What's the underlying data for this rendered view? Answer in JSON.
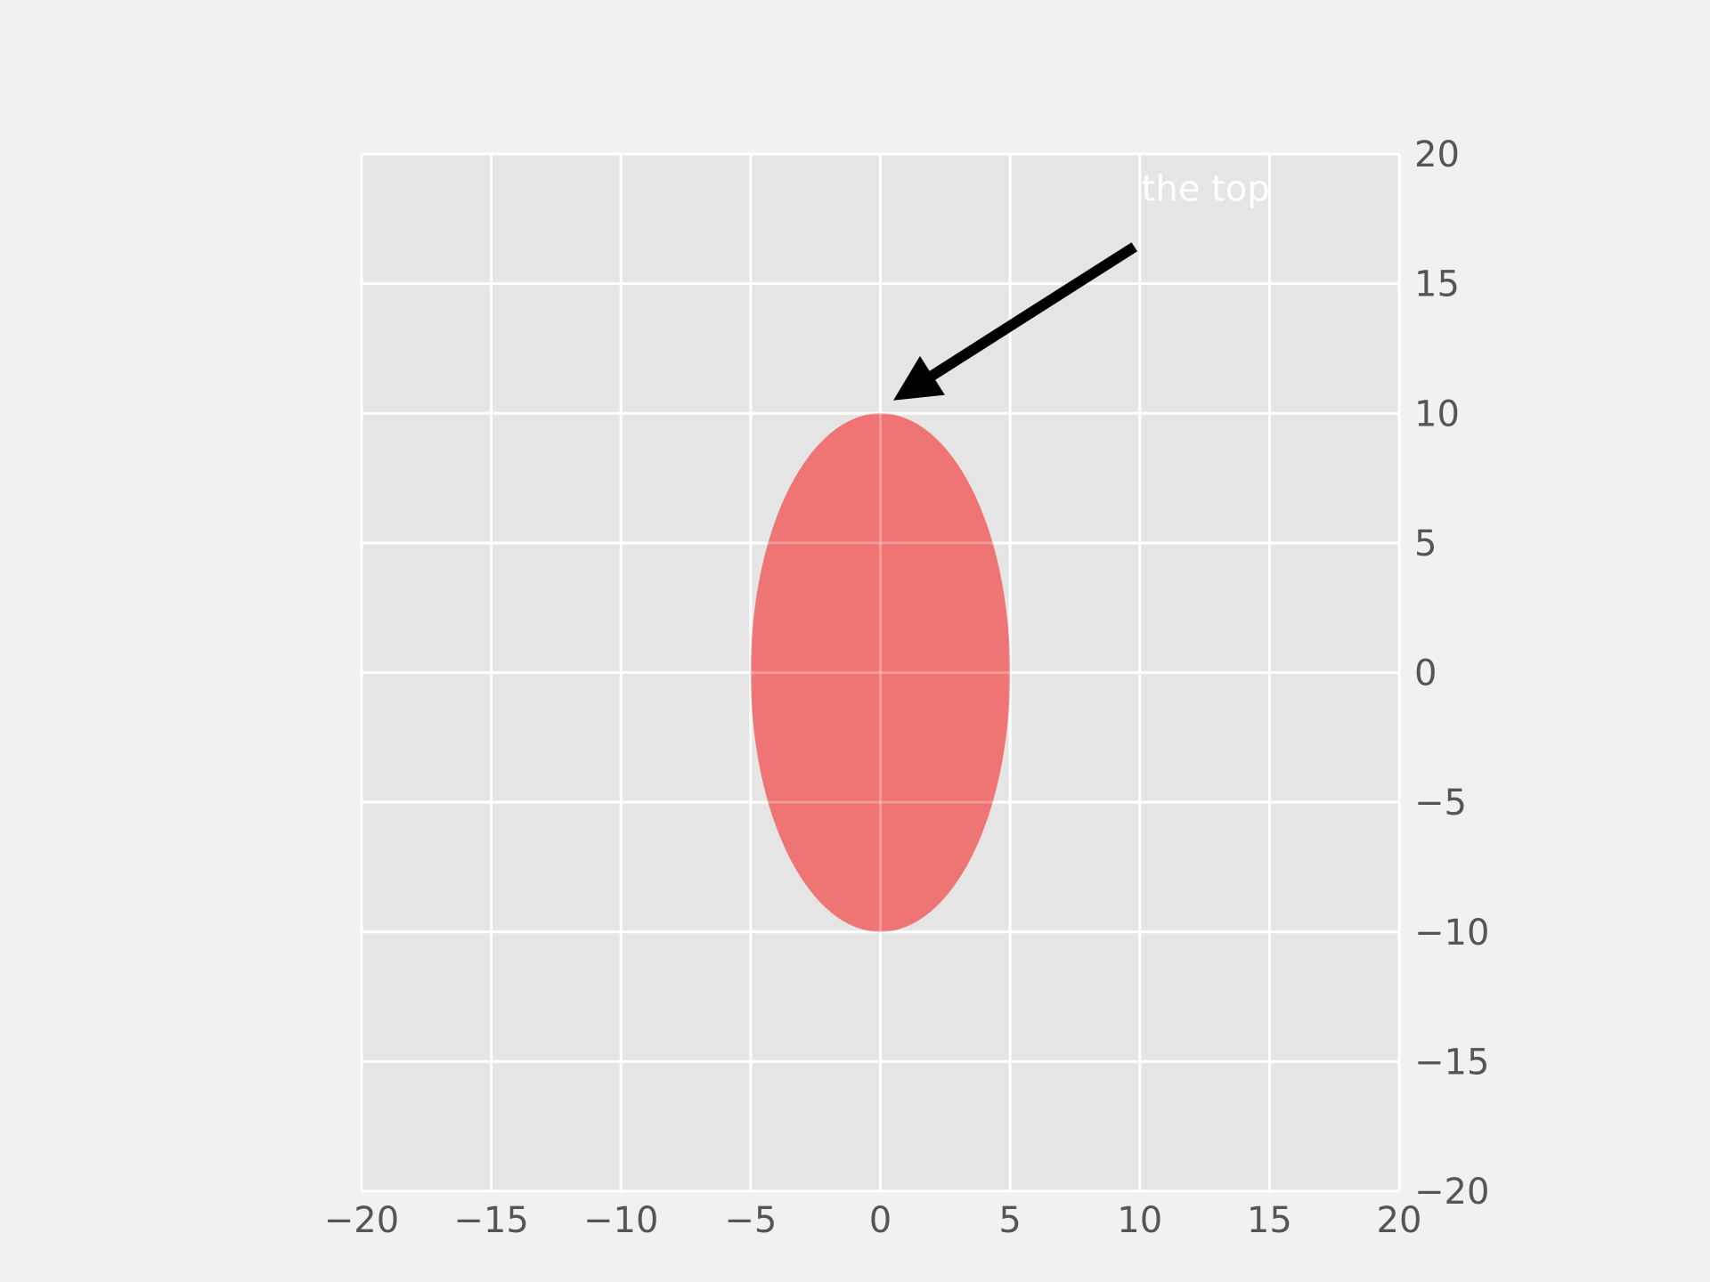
{
  "chart_data": {
    "type": "scatter",
    "title": "",
    "xlabel": "",
    "ylabel": "",
    "xlim": [
      -20,
      20
    ],
    "ylim": [
      -20,
      20
    ],
    "grid": true,
    "y_axis_side": "right",
    "x_ticks": [
      -20,
      -15,
      -10,
      -5,
      0,
      5,
      10,
      15,
      20
    ],
    "y_ticks": [
      -20,
      -15,
      -10,
      -5,
      0,
      5,
      10,
      15,
      20
    ],
    "x_tick_labels": [
      "−20",
      "−15",
      "−10",
      "−5",
      "0",
      "5",
      "10",
      "15",
      "20"
    ],
    "y_tick_labels": [
      "−20",
      "−15",
      "−10",
      "−5",
      "0",
      "5",
      "10",
      "15",
      "20"
    ],
    "shapes": [
      {
        "kind": "ellipse",
        "center": [
          0,
          0
        ],
        "width": 10,
        "height": 20,
        "fill": "#F0615F",
        "opacity": 0.85
      }
    ],
    "annotations": [
      {
        "text": "the top",
        "xy": [
          0.5,
          10.5
        ],
        "xytext": [
          10,
          18
        ],
        "arrow_color": "#000000",
        "text_color": "#ffffff"
      }
    ]
  },
  "colors": {
    "figure_background": "#f1f1f1",
    "axes_background": "#e5e5e5",
    "grid": "#ffffff",
    "tick_label": "#555555",
    "ellipse": "#F0615F",
    "arrow": "#000000",
    "annotation_text": "#ffffff"
  }
}
